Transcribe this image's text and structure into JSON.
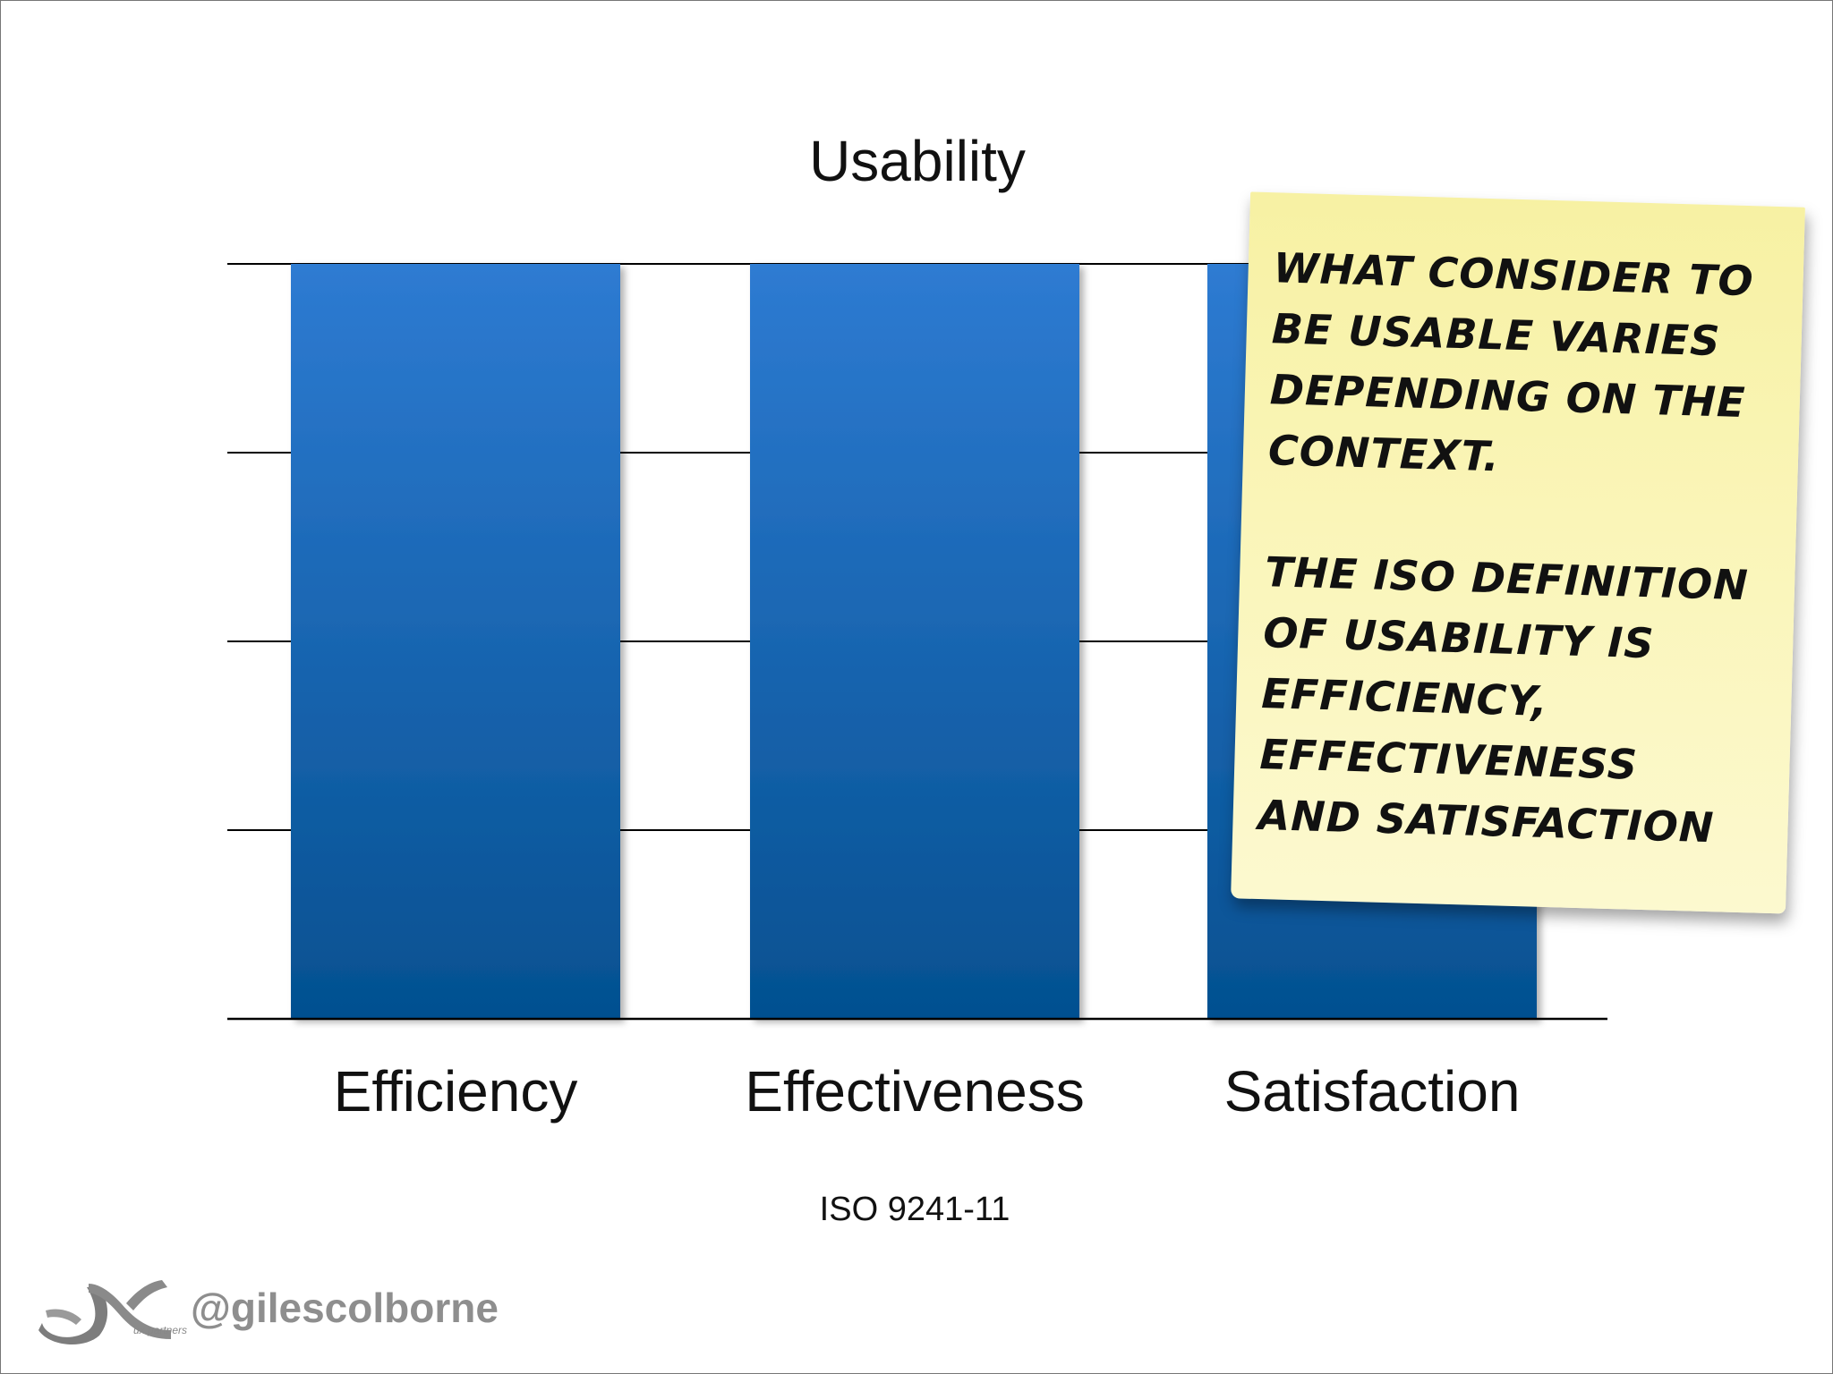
{
  "chart_data": {
    "type": "bar",
    "title": "Usability",
    "categories": [
      "Efficiency",
      "Effectiveness",
      "Satisfaction"
    ],
    "values": [
      4,
      4,
      4
    ],
    "ylim": [
      0,
      4
    ],
    "grid": true,
    "bar_color": "#1e6bc4",
    "bar_color_dark": "#074f93"
  },
  "footnote": "ISO 9241-11",
  "sticky_note": {
    "paragraph_1": "What consider to\nbe usable varies\ndepending on the\ncontext.",
    "paragraph_2": "The ISO definition\nof usability is\nefficiency,\neffectiveness\nand satisfaction",
    "color": "#f9f4b0"
  },
  "branding": {
    "logo_text": "ux partners",
    "handle": "@gilescolborne"
  }
}
